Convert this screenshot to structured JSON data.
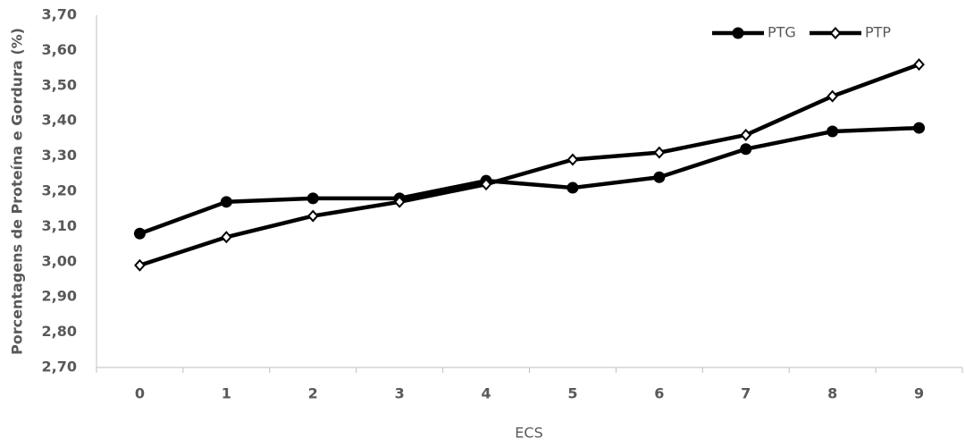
{
  "chart_data": {
    "type": "line",
    "x_label": "ECS",
    "y_label": "Porcentagens de Proteína e Gordura (%)",
    "categories": [
      "0",
      "1",
      "2",
      "3",
      "4",
      "5",
      "6",
      "7",
      "8",
      "9"
    ],
    "series": [
      {
        "name": "PTG",
        "color": "#000000",
        "marker": "circle",
        "values": [
          3.08,
          3.17,
          3.18,
          3.18,
          3.23,
          3.21,
          3.24,
          3.32,
          3.37,
          3.38
        ]
      },
      {
        "name": "PTP",
        "color": "#000000",
        "marker": "diamond",
        "values": [
          2.99,
          3.07,
          3.13,
          3.17,
          3.22,
          3.29,
          3.31,
          3.36,
          3.47,
          3.56
        ]
      }
    ],
    "ylim": [
      2.7,
      3.7
    ],
    "yticks": [
      {
        "value": 2.7,
        "label": "2,70"
      },
      {
        "value": 2.8,
        "label": "2,80"
      },
      {
        "value": 2.9,
        "label": "2,90"
      },
      {
        "value": 3.0,
        "label": "3,00"
      },
      {
        "value": 3.1,
        "label": "3,10"
      },
      {
        "value": 3.2,
        "label": "3,20"
      },
      {
        "value": 3.3,
        "label": "3,30"
      },
      {
        "value": 3.4,
        "label": "3,40"
      },
      {
        "value": 3.5,
        "label": "3,50"
      },
      {
        "value": 3.6,
        "label": "3,60"
      },
      {
        "value": 3.7,
        "label": "3,70"
      }
    ],
    "grid": false,
    "legend": "top-right"
  }
}
